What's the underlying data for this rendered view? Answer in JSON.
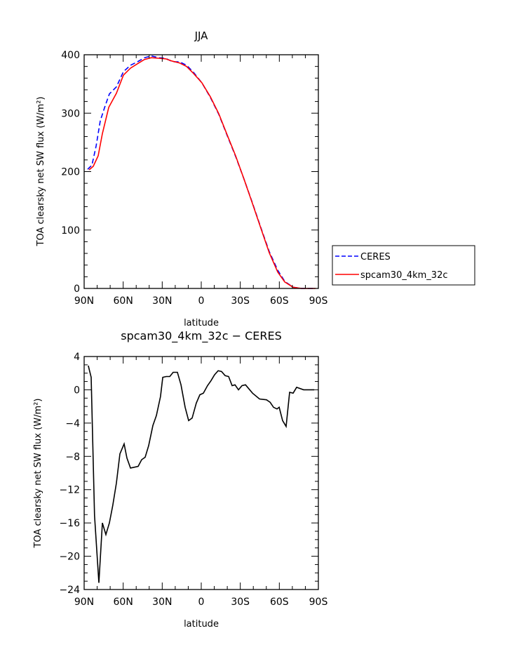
{
  "chart_data": [
    {
      "type": "line",
      "title": "JJA",
      "xlabel": "latitude",
      "ylabel": "TOA clearsky net SW flux (W/m²)",
      "xlim": [
        90,
        -90
      ],
      "ylim": [
        0,
        400
      ],
      "xticks": [
        90,
        60,
        30,
        0,
        -30,
        -60,
        -90
      ],
      "xtick_labels": [
        "90N",
        "60N",
        "30N",
        "0",
        "30S",
        "60S",
        "90S"
      ],
      "yticks": [
        0,
        100,
        200,
        300,
        400
      ],
      "ytick_labels": [
        "0",
        "100",
        "200",
        "300",
        "400"
      ],
      "legend_position": "outside-right",
      "series": [
        {
          "name": "CERES",
          "color": "#0000ff",
          "style": "dashed",
          "x": [
            87.3,
            84,
            80.8,
            77.6,
            73.8,
            70.6,
            65.2,
            59.8,
            54.4,
            49,
            43.6,
            38.3,
            32.9,
            27.5,
            22.1,
            16.7,
            11.3,
            6,
            -0.5,
            -7,
            -13.5,
            -19.9,
            -26.4,
            -32.9,
            -39.4,
            -45.8,
            -52.3,
            -58.8,
            -64.2,
            -70.6,
            -77,
            -87.8
          ],
          "y": [
            204,
            211,
            244,
            287,
            313,
            333,
            345,
            371,
            382,
            388,
            395,
            398,
            395,
            394,
            388,
            388,
            382,
            370,
            352,
            327,
            298,
            262,
            226,
            187,
            146,
            104,
            63,
            31,
            12,
            2,
            0,
            0
          ]
        },
        {
          "name": "spcam30_4km_32c",
          "color": "#ff0000",
          "style": "solid",
          "x": [
            86.2,
            83,
            79.2,
            76,
            71.1,
            65.2,
            59.8,
            54.4,
            48,
            43.6,
            38.3,
            32.9,
            27.5,
            22.1,
            16.7,
            11.3,
            6,
            -0.5,
            -7,
            -13.5,
            -19.9,
            -26.4,
            -32.9,
            -39.4,
            -45.8,
            -52.3,
            -58.8,
            -64.2,
            -70.6,
            -77,
            -87.8
          ],
          "y": [
            203,
            209,
            227,
            265,
            310,
            334,
            365,
            377,
            386,
            392,
            395,
            394,
            393,
            389,
            386,
            380,
            368,
            352,
            328,
            299,
            263,
            227,
            187,
            145,
            103,
            61,
            28,
            11,
            2,
            0,
            0
          ]
        }
      ]
    },
    {
      "type": "line",
      "title": "spcam30_4km_32c − CERES",
      "xlabel": "latitude",
      "ylabel": "TOA clearsky net SW flux (W/m²)",
      "xlim": [
        90,
        -90
      ],
      "ylim": [
        -24,
        4
      ],
      "xticks": [
        90,
        60,
        30,
        0,
        -30,
        -60,
        -90
      ],
      "xtick_labels": [
        "90N",
        "60N",
        "30N",
        "0",
        "30S",
        "60S",
        "90S"
      ],
      "yticks": [
        -24,
        -20,
        -16,
        -12,
        -8,
        -4,
        0,
        4
      ],
      "ytick_labels": [
        "−24",
        "−20",
        "−16",
        "−12",
        "−8",
        "−4",
        "0",
        "4"
      ],
      "series": [
        {
          "color": "#000000",
          "style": "solid",
          "x": [
            86.8,
            84.6,
            82,
            78.7,
            76,
            73.3,
            70.6,
            68,
            65.2,
            62.5,
            59.3,
            57.1,
            54.4,
            48.5,
            45.8,
            43.1,
            40.4,
            37.2,
            34.5,
            31.3,
            29.6,
            26.9,
            24.2,
            21.6,
            18.3,
            15.6,
            12.4,
            9.7,
            7,
            3.8,
            1.1,
            -1.6,
            -4.8,
            -7.5,
            -10.2,
            -13,
            -15.6,
            -18.4,
            -21,
            -23.7,
            -25.9,
            -28.6,
            -31.3,
            -34,
            -39.4,
            -44.8,
            -50.2,
            -52.9,
            -55.5,
            -58.2,
            -59.9,
            -62.5,
            -65.2,
            -67.9,
            -70.6,
            -73.3,
            -78.7,
            -86.8
          ],
          "y": [
            2.9,
            1.5,
            -15.1,
            -23.2,
            -16,
            -17.4,
            -16,
            -13.9,
            -11.2,
            -7.7,
            -6.5,
            -8.2,
            -9.4,
            -9.2,
            -8.4,
            -8.1,
            -6.7,
            -4.3,
            -3.1,
            -0.8,
            1.5,
            1.6,
            1.6,
            2.1,
            2.1,
            0.6,
            -2.1,
            -3.7,
            -3.4,
            -1.6,
            -0.6,
            -0.4,
            0.5,
            1.1,
            1.8,
            2.3,
            2.2,
            1.7,
            1.6,
            0.5,
            0.6,
            0,
            0.5,
            0.6,
            -0.4,
            -1.1,
            -1.2,
            -1.5,
            -2.1,
            -2.3,
            -2.1,
            -3.7,
            -4.4,
            -0.3,
            -0.4,
            0.3,
            0,
            0
          ]
        }
      ]
    }
  ]
}
